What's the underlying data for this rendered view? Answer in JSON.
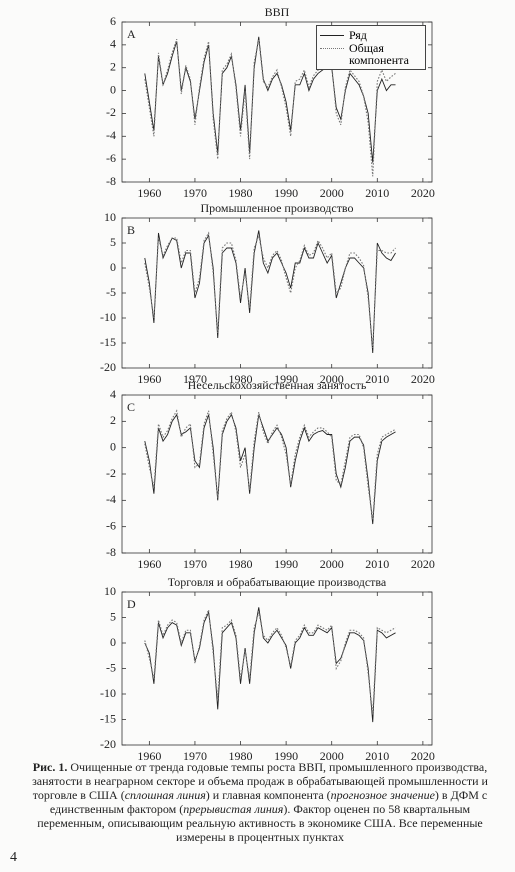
{
  "chart_data": [
    {
      "type": "line",
      "title": "ВВП",
      "panel_label": "A",
      "legend": "upper right",
      "x": [
        1959,
        1960,
        1961,
        1962,
        1963,
        1964,
        1965,
        1966,
        1967,
        1968,
        1969,
        1970,
        1971,
        1972,
        1973,
        1974,
        1975,
        1976,
        1977,
        1978,
        1979,
        1980,
        1981,
        1982,
        1983,
        1984,
        1985,
        1986,
        1987,
        1988,
        1989,
        1990,
        1991,
        1992,
        1993,
        1994,
        1995,
        1996,
        1997,
        1998,
        1999,
        2000,
        2001,
        2002,
        2003,
        2004,
        2005,
        2006,
        2007,
        2008,
        2009,
        2010,
        2011,
        2012,
        2013,
        2014
      ],
      "xlim": [
        1954,
        2022
      ],
      "xticks": [
        1960,
        1970,
        1980,
        1990,
        2000,
        2010,
        2020
      ],
      "ylim": [
        -8,
        6
      ],
      "yticks": [
        -8,
        -6,
        -4,
        -2,
        0,
        2,
        4,
        6
      ],
      "series": [
        {
          "name": "Ряд",
          "color": "#222222",
          "values": [
            1.5,
            -1.0,
            -3.5,
            3.0,
            0.5,
            1.5,
            3.0,
            4.3,
            0.0,
            2.0,
            0.8,
            -2.5,
            0.0,
            2.5,
            4.0,
            -2.0,
            -5.5,
            1.5,
            2.0,
            3.0,
            0.5,
            -3.5,
            0.5,
            -5.5,
            2.0,
            4.7,
            1.0,
            0.0,
            1.0,
            1.5,
            0.5,
            -1.0,
            -3.5,
            0.5,
            0.5,
            1.5,
            0.0,
            1.0,
            1.5,
            1.8,
            2.0,
            2.0,
            -1.5,
            -2.5,
            0.0,
            1.5,
            1.0,
            0.5,
            -0.5,
            -2.0,
            -6.3,
            0.0,
            1.0,
            0.0,
            0.5,
            0.5
          ]
        },
        {
          "name": "Общая компонента",
          "color": "#777777",
          "values": [
            1.0,
            -1.5,
            -4.0,
            3.3,
            0.5,
            1.8,
            3.3,
            4.5,
            -0.3,
            2.2,
            1.0,
            -3.0,
            0.3,
            2.8,
            4.3,
            -2.5,
            -6.0,
            1.8,
            2.3,
            3.2,
            0.2,
            -4.0,
            0.0,
            -6.0,
            2.5,
            4.5,
            0.8,
            0.3,
            1.2,
            1.8,
            0.3,
            -1.5,
            -4.0,
            0.8,
            1.0,
            1.8,
            0.3,
            1.3,
            1.8,
            2.0,
            2.3,
            2.3,
            -2.0,
            -3.0,
            0.3,
            1.8,
            1.3,
            0.8,
            -0.5,
            -2.8,
            -7.5,
            0.8,
            1.8,
            0.8,
            1.2,
            1.5
          ]
        }
      ]
    },
    {
      "type": "line",
      "title": "Промышленное производство",
      "panel_label": "B",
      "x": [
        1959,
        1960,
        1961,
        1962,
        1963,
        1964,
        1965,
        1966,
        1967,
        1968,
        1969,
        1970,
        1971,
        1972,
        1973,
        1974,
        1975,
        1976,
        1977,
        1978,
        1979,
        1980,
        1981,
        1982,
        1983,
        1984,
        1985,
        1986,
        1987,
        1988,
        1989,
        1990,
        1991,
        1992,
        1993,
        1994,
        1995,
        1996,
        1997,
        1998,
        1999,
        2000,
        2001,
        2002,
        2003,
        2004,
        2005,
        2006,
        2007,
        2008,
        2009,
        2010,
        2011,
        2012,
        2013,
        2014
      ],
      "xlim": [
        1954,
        2022
      ],
      "xticks": [
        1960,
        1970,
        1980,
        1990,
        2000,
        2010,
        2020
      ],
      "ylim": [
        -20,
        10
      ],
      "yticks": [
        -20,
        -15,
        -10,
        -5,
        0,
        5,
        10
      ],
      "series": [
        {
          "color": "#222222",
          "values": [
            2,
            -3,
            -11,
            7,
            2,
            4,
            6,
            5.5,
            0,
            3,
            3,
            -6,
            -3,
            5,
            6.5,
            0,
            -14,
            3,
            4,
            4,
            1,
            -7,
            0,
            -9,
            3,
            7.5,
            1,
            -1,
            2,
            3,
            1,
            -1,
            -4,
            1,
            1,
            4,
            2,
            2,
            5,
            3,
            1,
            2.5,
            -6,
            -3,
            0,
            2,
            2,
            1,
            0,
            -5,
            -17,
            5,
            3,
            2,
            1.5,
            3
          ]
        },
        {
          "color": "#777777",
          "values": [
            1,
            -4,
            -10,
            6,
            2.5,
            4.5,
            6,
            6,
            1,
            3.5,
            3.5,
            -5,
            -2,
            5.5,
            7,
            -1,
            -13,
            4,
            5,
            5,
            1.5,
            -6,
            -1,
            -8,
            4,
            6.5,
            2,
            0,
            2.5,
            3.5,
            1.5,
            -2,
            -5,
            0,
            1.5,
            4.5,
            2.5,
            3,
            5.5,
            4,
            2,
            3,
            -5,
            -4,
            0,
            3,
            3,
            2,
            0.5,
            -6,
            -16,
            3.5,
            3.5,
            3,
            3,
            4
          ]
        }
      ]
    },
    {
      "type": "line",
      "title": "Несельскохозяйственная занятость",
      "panel_label": "C",
      "x": [
        1959,
        1960,
        1961,
        1962,
        1963,
        1964,
        1965,
        1966,
        1967,
        1968,
        1969,
        1970,
        1971,
        1972,
        1973,
        1974,
        1975,
        1976,
        1977,
        1978,
        1979,
        1980,
        1981,
        1982,
        1983,
        1984,
        1985,
        1986,
        1987,
        1988,
        1989,
        1990,
        1991,
        1992,
        1993,
        1994,
        1995,
        1996,
        1997,
        1998,
        1999,
        2000,
        2001,
        2002,
        2003,
        2004,
        2005,
        2006,
        2007,
        2008,
        2009,
        2010,
        2011,
        2012,
        2013,
        2014
      ],
      "xlim": [
        1954,
        2022
      ],
      "xticks": [
        1960,
        1970,
        1980,
        1990,
        2000,
        2010,
        2020
      ],
      "ylim": [
        -8,
        4
      ],
      "yticks": [
        -8,
        -6,
        -4,
        -2,
        0,
        2,
        4
      ],
      "series": [
        {
          "color": "#222222",
          "values": [
            0.5,
            -1,
            -3.5,
            1.5,
            0.5,
            1,
            2,
            2.5,
            1,
            1.2,
            1.5,
            -1,
            -1.5,
            1.5,
            2.5,
            0,
            -4,
            1,
            2,
            2.5,
            1.5,
            -1,
            0,
            -3.5,
            0,
            2.5,
            1.5,
            0.5,
            1,
            1.5,
            1,
            0,
            -3,
            -1,
            0.5,
            1.5,
            0.5,
            1,
            1.2,
            1.3,
            1,
            1,
            -2,
            -3,
            -1.5,
            0.5,
            0.8,
            0.8,
            0.2,
            -2.5,
            -5.8,
            -1,
            0.5,
            0.8,
            1,
            1.2
          ]
        },
        {
          "color": "#777777",
          "values": [
            0.3,
            -1.5,
            -3,
            1.8,
            0.8,
            1.3,
            2.2,
            2.8,
            0.8,
            1.5,
            1.8,
            -1.5,
            -1.2,
            1.8,
            2.8,
            -0.5,
            -3.8,
            1.3,
            2.2,
            2.7,
            1.2,
            -1.5,
            -0.5,
            -3.2,
            0.5,
            2.7,
            1.2,
            0.3,
            1.2,
            1.7,
            0.8,
            -0.5,
            -2.8,
            -0.5,
            0.8,
            1.7,
            0.8,
            1.2,
            1.5,
            1.5,
            1.2,
            0.8,
            -2.5,
            -2.8,
            -1,
            0.8,
            1,
            1,
            0,
            -3,
            -5.5,
            -0.5,
            0.8,
            1,
            1.2,
            1.4
          ]
        }
      ]
    },
    {
      "type": "line",
      "title": "Торговля и обрабатывающие производства",
      "panel_label": "D",
      "x": [
        1959,
        1960,
        1961,
        1962,
        1963,
        1964,
        1965,
        1966,
        1967,
        1968,
        1969,
        1970,
        1971,
        1972,
        1973,
        1974,
        1975,
        1976,
        1977,
        1978,
        1979,
        1980,
        1981,
        1982,
        1983,
        1984,
        1985,
        1986,
        1987,
        1988,
        1989,
        1990,
        1991,
        1992,
        1993,
        1994,
        1995,
        1996,
        1997,
        1998,
        1999,
        2000,
        2001,
        2002,
        2003,
        2004,
        2005,
        2006,
        2007,
        2008,
        2009,
        2010,
        2011,
        2012,
        2013,
        2014
      ],
      "xlim": [
        1954,
        2022
      ],
      "xticks": [
        1960,
        1970,
        1980,
        1990,
        2000,
        2010,
        2020
      ],
      "ylim": [
        -20,
        10
      ],
      "yticks": [
        -20,
        -15,
        -10,
        -5,
        0,
        5,
        10
      ],
      "series": [
        {
          "color": "#222222",
          "values": [
            0,
            -2,
            -8,
            4,
            1,
            3,
            4,
            3.5,
            -0.5,
            2,
            2,
            -3.5,
            -1,
            4,
            6,
            -1,
            -13,
            2,
            3,
            4,
            1,
            -8,
            -1,
            -8,
            2,
            7,
            1,
            0,
            1.5,
            2.5,
            1,
            -0.5,
            -5,
            0,
            1,
            3,
            1.5,
            1.5,
            3,
            2.5,
            2,
            3,
            -4,
            -3,
            -0.5,
            2,
            2,
            1.5,
            0.5,
            -5,
            -15.5,
            2.5,
            2,
            1,
            1.5,
            2
          ]
        },
        {
          "color": "#777777",
          "values": [
            0.5,
            -3,
            -7,
            4.5,
            1.5,
            3.5,
            4.5,
            4,
            0,
            2.5,
            2.5,
            -4,
            -0.5,
            4.5,
            6.5,
            -2,
            -11,
            3,
            3.5,
            4.5,
            1.5,
            -7,
            -1.5,
            -7,
            3,
            6,
            1.5,
            0.5,
            2,
            3,
            1.5,
            -1,
            -4.5,
            0.5,
            1.5,
            3.5,
            2,
            2,
            3.5,
            3,
            2.5,
            3.5,
            -5,
            -3.5,
            0,
            2.5,
            2.5,
            2,
            1,
            -6,
            -14,
            3,
            2.5,
            2,
            2.5,
            3
          ]
        }
      ]
    }
  ],
  "caption": {
    "label": "Рис. 1.",
    "parts": [
      {
        "text": "Очищенные от тренда годовые темпы роста ВВП, промышленного производства, занятости в неаграрном секторе и объема продаж в обрабатывающей промышленности и торговле в США (",
        "italic": false
      },
      {
        "text": "сплошная линия",
        "italic": true
      },
      {
        "text": ") и главная компонента (",
        "italic": false
      },
      {
        "text": "прогнозное значение",
        "italic": true
      },
      {
        "text": ") в ДФМ с единственным фактором (",
        "italic": false
      },
      {
        "text": "прерывистая линия",
        "italic": true
      },
      {
        "text": "). Фактор оценен по 58 квартальным переменным, описывающим реальную активность в экономике США. Все переменные измерены в процентных пунктах",
        "italic": false
      }
    ]
  },
  "page_number": "4"
}
